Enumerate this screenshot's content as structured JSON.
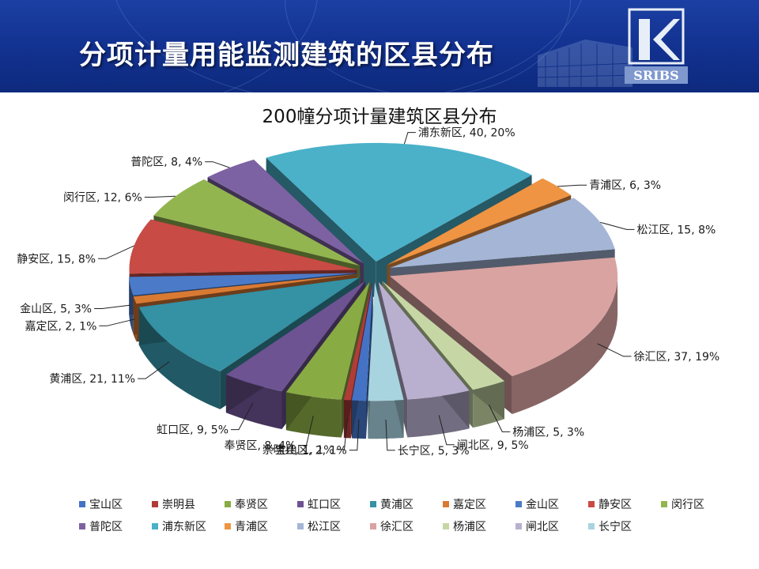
{
  "header": {
    "title": "分项计量用能监测建筑的区县分布",
    "logo_text": "SRIBS",
    "bg_color": "#13338f"
  },
  "chart_data": {
    "type": "pie",
    "title": "200幢分项计量建筑区县分布",
    "three_d": true,
    "exploded": true,
    "legend_position": "bottom",
    "slices": [
      {
        "name": "宝山区",
        "value": 2,
        "percent": "1%",
        "color": "#4472c4",
        "label": "宝山区, 2, 1%"
      },
      {
        "name": "崇明县",
        "value": 1,
        "percent": "1%",
        "color": "#b03c38",
        "label": "崇明县, 1, 1%"
      },
      {
        "name": "奉贤区",
        "value": 8,
        "percent": "4%",
        "color": "#89ab44",
        "label": "奉贤区, 8, 4%"
      },
      {
        "name": "虹口区",
        "value": 9,
        "percent": "5%",
        "color": "#6d5392",
        "label": "虹口区, 9, 5%"
      },
      {
        "name": "黄浦区",
        "value": 21,
        "percent": "11%",
        "color": "#3591a4",
        "label": "黄浦区, 21, 11%"
      },
      {
        "name": "嘉定区",
        "value": 2,
        "percent": "1%",
        "color": "#d97a33",
        "label": "嘉定区, 2, 1%"
      },
      {
        "name": "金山区",
        "value": 5,
        "percent": "3%",
        "color": "#4b7bc8",
        "label": "金山区, 5, 3%"
      },
      {
        "name": "静安区",
        "value": 15,
        "percent": "8%",
        "color": "#c84b45",
        "label": "静安区, 15, 8%"
      },
      {
        "name": "闵行区",
        "value": 12,
        "percent": "6%",
        "color": "#93b550",
        "label": "闵行区, 12, 6%"
      },
      {
        "name": "普陀区",
        "value": 8,
        "percent": "4%",
        "color": "#7d62a3",
        "label": "普陀区, 8, 4%"
      },
      {
        "name": "浦东新区",
        "value": 40,
        "percent": "20%",
        "color": "#4ab1c9",
        "label": "浦东新区, 40, 20%"
      },
      {
        "name": "青浦区",
        "value": 6,
        "percent": "3%",
        "color": "#ef9443",
        "label": "青浦区, 6, 3%"
      },
      {
        "name": "松江区",
        "value": 15,
        "percent": "8%",
        "color": "#a4b5d6",
        "label": "松江区, 15, 8%"
      },
      {
        "name": "徐汇区",
        "value": 37,
        "percent": "19%",
        "color": "#d9a3a1",
        "label": "徐汇区, 37, 19%"
      },
      {
        "name": "杨浦区",
        "value": 5,
        "percent": "3%",
        "color": "#c6d7a5",
        "label": "杨浦区, 5, 3%"
      },
      {
        "name": "闸北区",
        "value": 9,
        "percent": "5%",
        "color": "#b9b0d0",
        "label": "闸北区, 9, 5%"
      },
      {
        "name": "长宁区",
        "value": 5,
        "percent": "3%",
        "color": "#a8d4e0",
        "label": "长宁区, 5, 3%"
      }
    ]
  }
}
